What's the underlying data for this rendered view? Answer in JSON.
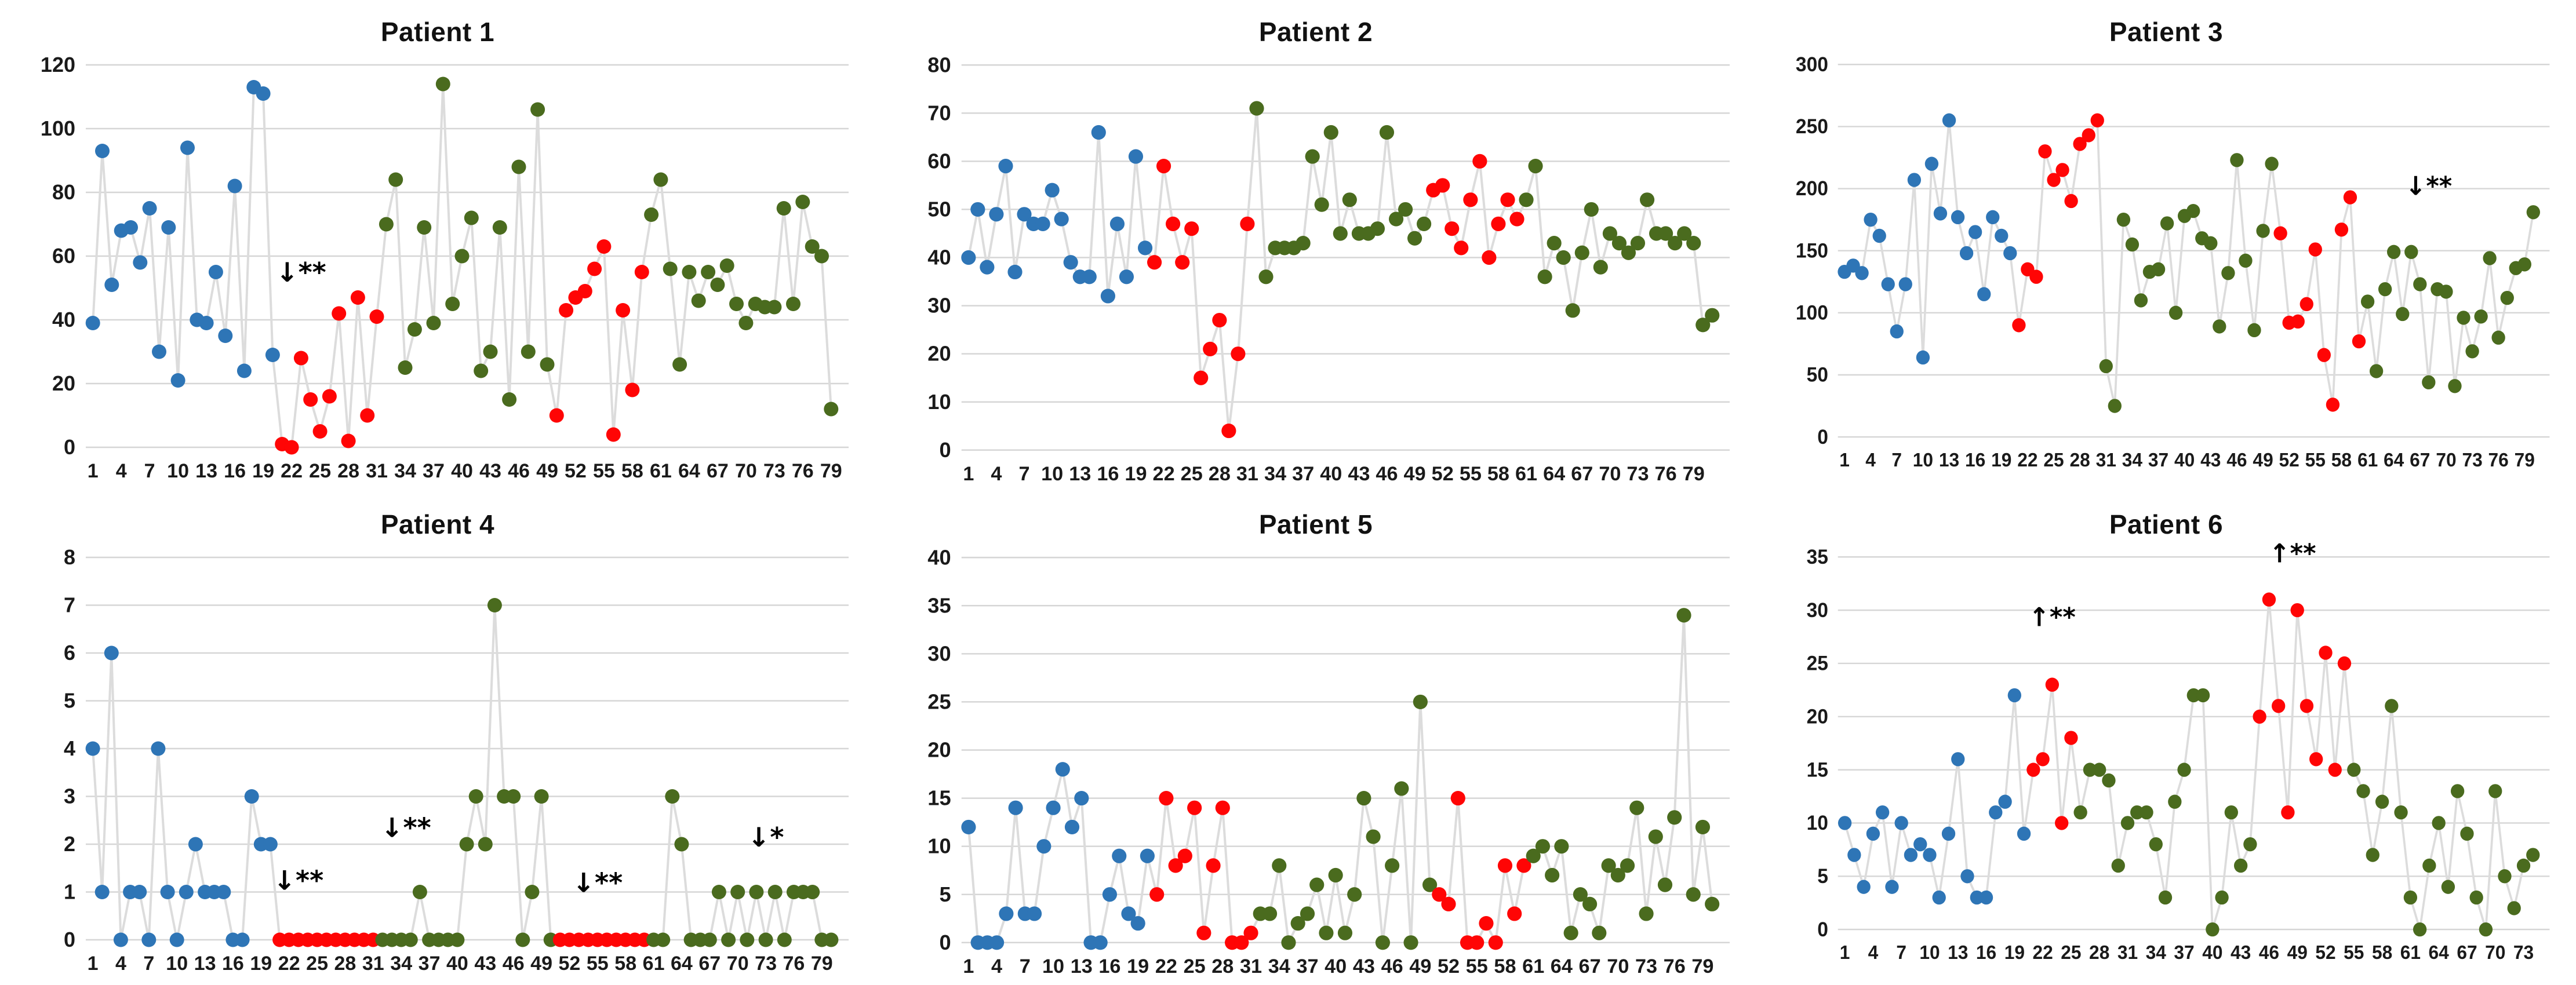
{
  "figure": {
    "description": "Six-panel scatter plot figure, one panel per patient, points connected by light gray lines. Point color phases: blue (start), red (middle episodes), dark green (later). Black arrow annotations with asterisks mark significant changes.",
    "grid": "horizontal gridlines only",
    "legend": "none"
  },
  "colors": {
    "blue": "#2E75B6",
    "red": "#FF0505",
    "green": "#4A6B1E",
    "connector": "#DCDCDC",
    "gridline": "#D6D6D6",
    "text": "#111111"
  },
  "chart_data": [
    {
      "type": "scatter",
      "title": "Patient 1",
      "ylim": [
        0,
        120
      ],
      "ystep": 20,
      "xtick_start": 1,
      "xtick_step": 3,
      "xtick_last": 79,
      "values": [
        39,
        93,
        51,
        68,
        69,
        58,
        75,
        30,
        69,
        21,
        94,
        40,
        39,
        55,
        35,
        82,
        24,
        113,
        111,
        29,
        1,
        0,
        28,
        15,
        5,
        16,
        42,
        2,
        47,
        10,
        41,
        70,
        84,
        25,
        37,
        69,
        39,
        114,
        45,
        60,
        72,
        24,
        30,
        69,
        15,
        88,
        30,
        106,
        26,
        10,
        43,
        47,
        49,
        56,
        63,
        4,
        43,
        18,
        55,
        73,
        84,
        56,
        26,
        55,
        46,
        55,
        51,
        57,
        45,
        39,
        45,
        44,
        44,
        75,
        45,
        77,
        63,
        60,
        12
      ],
      "point_colors": "bbbbbbbbbbbbbbbbbbbbrrrrrrrrrrrggggggggggggggggggrrrrrrrrrrgggggggggggggggggggg",
      "annotations": [
        {
          "x": 23,
          "y": 52,
          "text": "↓**"
        }
      ]
    },
    {
      "type": "scatter",
      "title": "Patient 2",
      "ylim": [
        0,
        80
      ],
      "ystep": 10,
      "xtick_start": 1,
      "xtick_step": 3,
      "xtick_last": 79,
      "values": [
        40,
        50,
        38,
        49,
        59,
        37,
        49,
        47,
        47,
        54,
        48,
        39,
        36,
        36,
        66,
        32,
        47,
        36,
        61,
        42,
        39,
        59,
        47,
        39,
        46,
        15,
        21,
        27,
        4,
        20,
        47,
        71,
        36,
        42,
        42,
        42,
        43,
        61,
        51,
        66,
        45,
        52,
        45,
        45,
        46,
        66,
        48,
        50,
        44,
        47,
        54,
        55,
        46,
        42,
        52,
        60,
        40,
        47,
        52,
        48,
        52,
        59,
        36,
        43,
        40,
        29,
        41,
        50,
        38,
        45,
        43,
        41,
        43,
        52,
        45,
        45,
        43,
        45,
        43,
        26,
        28
      ],
      "point_colors": "bbbbbbbbbbbbbbbbbbbbrrrrrrrrrrrgggggggggggggggggggrrrrrrrrrrggggggggggggggggggggg",
      "annotations": []
    },
    {
      "type": "scatter",
      "title": "Patient 3",
      "ylim": [
        0,
        300
      ],
      "ystep": 50,
      "xtick_start": 1,
      "xtick_step": 3,
      "xtick_last": 79,
      "values": [
        133,
        138,
        132,
        175,
        162,
        123,
        85,
        123,
        207,
        64,
        220,
        180,
        255,
        177,
        148,
        165,
        115,
        177,
        162,
        148,
        90,
        135,
        129,
        230,
        207,
        215,
        190,
        236,
        243,
        255,
        57,
        25,
        175,
        155,
        110,
        133,
        135,
        172,
        100,
        178,
        182,
        160,
        156,
        89,
        132,
        223,
        142,
        86,
        166,
        220,
        164,
        92,
        93,
        107,
        151,
        66,
        26,
        167,
        193,
        77,
        109,
        53,
        119,
        149,
        99,
        149,
        123,
        44,
        119,
        117,
        41,
        96,
        69,
        97,
        144,
        80,
        112,
        136,
        139,
        181
      ],
      "point_colors": "bbbbbbbbbbbbbbbbbbbbrrrrrrrrrrggggggggggggggggggggrrrrrrrrrrgggggggggggggggggggg",
      "annotations": [
        {
          "x": 68,
          "y": 195,
          "text": "↓**"
        }
      ]
    },
    {
      "type": "scatter",
      "title": "Patient 4",
      "ylim": [
        0,
        8
      ],
      "ystep": 1,
      "xtick_start": 1,
      "xtick_step": 3,
      "xtick_last": 79,
      "values": [
        4,
        1,
        6,
        0,
        1,
        1,
        0,
        4,
        1,
        0,
        1,
        2,
        1,
        1,
        1,
        0,
        0,
        3,
        2,
        2,
        0,
        0,
        0,
        0,
        0,
        0,
        0,
        0,
        0,
        0,
        0,
        0,
        0,
        0,
        0,
        1,
        0,
        0,
        0,
        0,
        2,
        3,
        2,
        7,
        3,
        3,
        0,
        1,
        3,
        0,
        0,
        0,
        0,
        0,
        0,
        0,
        0,
        0,
        0,
        0,
        0,
        0,
        3,
        2,
        0,
        0,
        0,
        1,
        0,
        1,
        0,
        1,
        0,
        1,
        0,
        1,
        1,
        1,
        0,
        0
      ],
      "point_colors": "bbbbbbbbbbbbbbbbbbbbrrrrrrrrrrrgggggggggggggggggggrrrrrrrrrrgggggggggggggggggggg",
      "annotations": [
        {
          "x": 23,
          "y": 1.05,
          "text": "↓**"
        },
        {
          "x": 34.5,
          "y": 2.15,
          "text": "↓**"
        },
        {
          "x": 55,
          "y": 1.0,
          "text": "↓**"
        },
        {
          "x": 73,
          "y": 1.95,
          "text": "↓*"
        }
      ]
    },
    {
      "type": "scatter",
      "title": "Patient 5",
      "ylim": [
        0,
        40
      ],
      "ystep": 5,
      "xtick_start": 1,
      "xtick_step": 3,
      "xtick_last": 79,
      "values": [
        12,
        0,
        0,
        0,
        3,
        14,
        3,
        3,
        10,
        14,
        18,
        12,
        15,
        0,
        0,
        5,
        9,
        3,
        2,
        9,
        5,
        15,
        8,
        9,
        14,
        1,
        8,
        14,
        0,
        0,
        1,
        3,
        3,
        8,
        0,
        2,
        3,
        6,
        1,
        7,
        1,
        5,
        15,
        11,
        0,
        8,
        16,
        0,
        25,
        6,
        5,
        4,
        15,
        0,
        0,
        2,
        0,
        8,
        3,
        8,
        9,
        10,
        7,
        10,
        1,
        5,
        4,
        1,
        8,
        7,
        8,
        14,
        3,
        11,
        6,
        13,
        34,
        5,
        12,
        4
      ],
      "point_colors": "bbbbbbbbbbbbbbbbbbbbrrrrrrrrrrrgggggggggggggggggggrrrrrrrrrrgggggggggggggggggggg",
      "annotations": []
    },
    {
      "type": "scatter",
      "title": "Patient 6",
      "ylim": [
        0,
        35
      ],
      "ystep": 5,
      "xtick_start": 1,
      "xtick_step": 3,
      "xtick_last": 73,
      "values": [
        10,
        7,
        4,
        9,
        11,
        4,
        10,
        7,
        8,
        7,
        3,
        9,
        16,
        5,
        3,
        3,
        11,
        12,
        22,
        9,
        15,
        16,
        23,
        10,
        18,
        11,
        15,
        15,
        14,
        6,
        10,
        11,
        11,
        8,
        3,
        12,
        15,
        22,
        22,
        0,
        3,
        11,
        6,
        8,
        20,
        31,
        21,
        11,
        30,
        21,
        16,
        26,
        15,
        25,
        15,
        13,
        7,
        12,
        21,
        11,
        3,
        0,
        6,
        10,
        4,
        13,
        9,
        3,
        0,
        13,
        5,
        2,
        6,
        7
      ],
      "point_colors": "bbbbbbbbbbbbbbbbbbbbrrrrrgggggggggggggggggggrrrrrrrrrrgggggggggggggggggggg",
      "annotations": [
        {
          "x": 23,
          "y": 28.5,
          "text": "↑**"
        },
        {
          "x": 48.5,
          "y": 34.5,
          "text": "↑**"
        }
      ]
    }
  ]
}
